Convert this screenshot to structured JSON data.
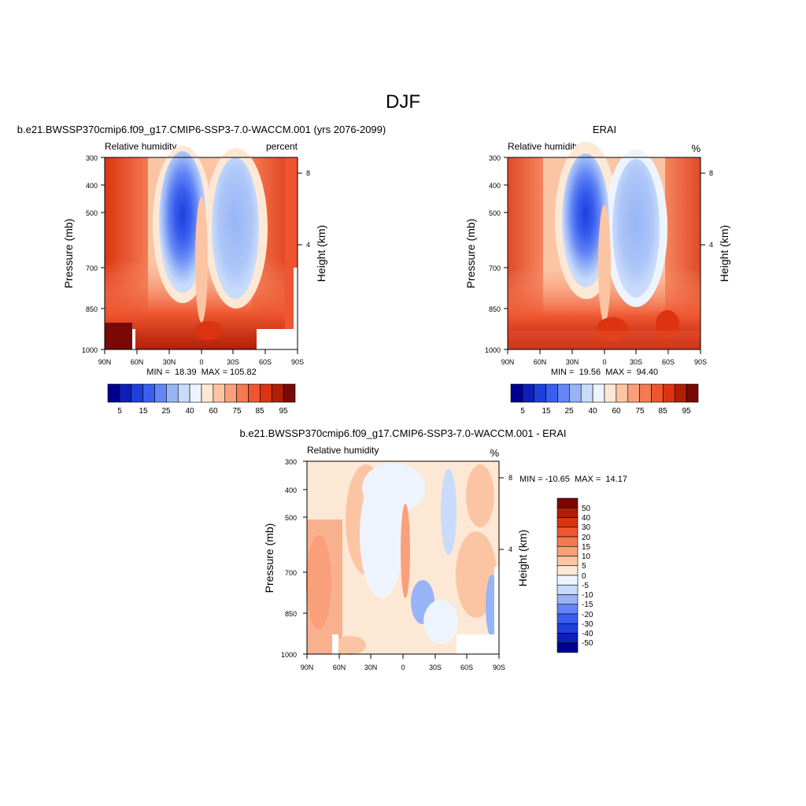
{
  "figure": {
    "title": "DJF",
    "colors": {
      "abs_scale": [
        "#000090",
        "#0d1fb8",
        "#1e3fdc",
        "#3a5ef0",
        "#6386f4",
        "#97b4f6",
        "#c9dbfb",
        "#eef4fd",
        "#fde8d6",
        "#fbc5a4",
        "#f9a07a",
        "#f47a52",
        "#ee5530",
        "#dc3410",
        "#b11e08",
        "#7a0906"
      ],
      "diff_scale": [
        "#000090",
        "#0d1fb8",
        "#1e3fdc",
        "#3a5ef0",
        "#6386f4",
        "#97b4f6",
        "#c9dbfb",
        "#eef4fd",
        "#fde8d6",
        "#fbc5a4",
        "#f9a07a",
        "#f47a52",
        "#ee5530",
        "#dc3410",
        "#b11e08",
        "#7a0906"
      ]
    }
  },
  "chart_data": [
    {
      "id": "model",
      "type": "heatmap",
      "title": "b.e21.BWSSP370cmip6.f09_g17.CMIP6-SSP3-7.0-WACCM.001 (yrs 2076-2099)",
      "left_string": "Relative humidity",
      "right_string": "percent",
      "ylabel": "Pressure (mb)",
      "y2label": "Height (km)",
      "xticks": [
        "90N",
        "60N",
        "30N",
        "0",
        "30S",
        "60S",
        "90S"
      ],
      "xlim": [
        90,
        -90
      ],
      "yticks": [
        "300",
        "400",
        "500",
        "700",
        "850",
        "1000"
      ],
      "ytick_values": [
        300,
        400,
        500,
        700,
        850,
        1000
      ],
      "ylim": [
        300,
        1000
      ],
      "y2ticks": [
        "8",
        "4"
      ],
      "y2tick_values": [
        8,
        4
      ],
      "stats": "MIN =  18.39  MAX = 105.82",
      "min": 18.39,
      "max": 105.82,
      "colorbar_labels": [
        "5",
        "15",
        "25",
        "40",
        "60",
        "75",
        "85",
        "95"
      ]
    },
    {
      "id": "obs",
      "type": "heatmap",
      "title": "ERAI",
      "left_string": "Relative humidity",
      "right_string": "%",
      "ylabel": "Pressure (mb)",
      "y2label": "Height (km)",
      "xticks": [
        "90N",
        "60N",
        "30N",
        "0",
        "30S",
        "60S",
        "90S"
      ],
      "xlim": [
        90,
        -90
      ],
      "yticks": [
        "300",
        "400",
        "500",
        "700",
        "850",
        "1000"
      ],
      "ytick_values": [
        300,
        400,
        500,
        700,
        850,
        1000
      ],
      "ylim": [
        300,
        1000
      ],
      "y2ticks": [
        "8",
        "4"
      ],
      "y2tick_values": [
        8,
        4
      ],
      "stats": "MIN =  19.56  MAX =  94.40",
      "min": 19.56,
      "max": 94.4,
      "colorbar_labels": [
        "5",
        "15",
        "25",
        "40",
        "60",
        "75",
        "85",
        "95"
      ]
    },
    {
      "id": "diff",
      "type": "heatmap",
      "title": "b.e21.BWSSP370cmip6.f09_g17.CMIP6-SSP3-7.0-WACCM.001 - ERAI",
      "left_string": "Relative humidity",
      "right_string": "%",
      "ylabel": "Pressure (mb)",
      "y2label": "Height (km)",
      "xticks": [
        "90N",
        "60N",
        "30N",
        "0",
        "30S",
        "60S",
        "90S"
      ],
      "xlim": [
        90,
        -90
      ],
      "yticks": [
        "300",
        "400",
        "500",
        "700",
        "850",
        "1000"
      ],
      "ytick_values": [
        300,
        400,
        500,
        700,
        850,
        1000
      ],
      "ylim": [
        300,
        1000
      ],
      "y2ticks": [
        "8",
        "4"
      ],
      "y2tick_values": [
        8,
        4
      ],
      "stats": "MIN = -10.65  MAX =  14.17",
      "min": -10.65,
      "max": 14.17,
      "colorbar_labels": [
        "50",
        "40",
        "30",
        "20",
        "15",
        "10",
        "5",
        "0",
        "-5",
        "-10",
        "-15",
        "-20",
        "-30",
        "-40",
        "-50"
      ]
    }
  ]
}
